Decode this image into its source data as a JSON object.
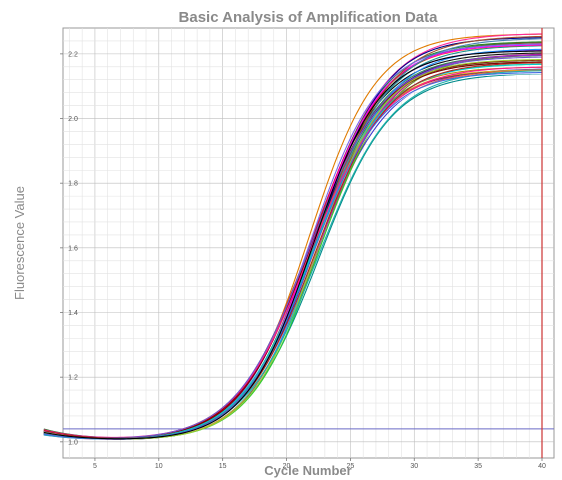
{
  "chart_data": {
    "type": "line",
    "title": "Basic Analysis of Amplification Data",
    "xlabel": "Cycle Number",
    "ylabel": "Fluorescence Value",
    "xlim": [
      0,
      40
    ],
    "ylim": [
      0.95,
      2.28
    ],
    "x_ticks": [
      5,
      10,
      15,
      20,
      25,
      30,
      35,
      40
    ],
    "y_ticks": [
      {
        "value": 1.0,
        "label": "1.0"
      },
      {
        "value": 1.2,
        "label": "1.2"
      },
      {
        "value": 1.4,
        "label": "1.4"
      },
      {
        "value": 1.6,
        "label": "1.6"
      },
      {
        "value": 1.8,
        "label": "1.8"
      },
      {
        "value": 2.0,
        "label": "2.0"
      },
      {
        "value": 2.2,
        "label": "2.2"
      }
    ],
    "grid": true,
    "threshold_line": {
      "value": 1.04,
      "color": "#6b6bc8"
    },
    "cursor_line": {
      "value": 40,
      "color": "#cc3333"
    },
    "series_model": {
      "x_start": 1,
      "x_end": 40,
      "baseline_start_range": [
        1.02,
        1.04
      ],
      "baseline_low": 1.0,
      "midpoint_range": [
        21.7,
        22.6
      ],
      "plateau_range": [
        2.14,
        2.27
      ],
      "count": 40
    },
    "colors": [
      "#3b3bd0",
      "#d83a3a",
      "#2f9a2f",
      "#111111",
      "#8a2be2",
      "#e07b00",
      "#ff2a9a",
      "#1a8f8f",
      "#6b8e23",
      "#b8860b",
      "#000080",
      "#c71585",
      "#228b22",
      "#4b0082",
      "#ff4500",
      "#2e8b57",
      "#9932cc",
      "#dc143c",
      "#00008b",
      "#556b2f",
      "#8b0000",
      "#ff00ff",
      "#008b8b",
      "#daa520",
      "#1e90ff",
      "#a0522d",
      "#7b68ee",
      "#32cd32",
      "#ff6347",
      "#4682b4",
      "#800000",
      "#00ced1",
      "#ff1493",
      "#6a5acd",
      "#ffffff",
      "#9acd32",
      "#b22222",
      "#20b2aa",
      "#4169e1",
      "#000000"
    ]
  }
}
